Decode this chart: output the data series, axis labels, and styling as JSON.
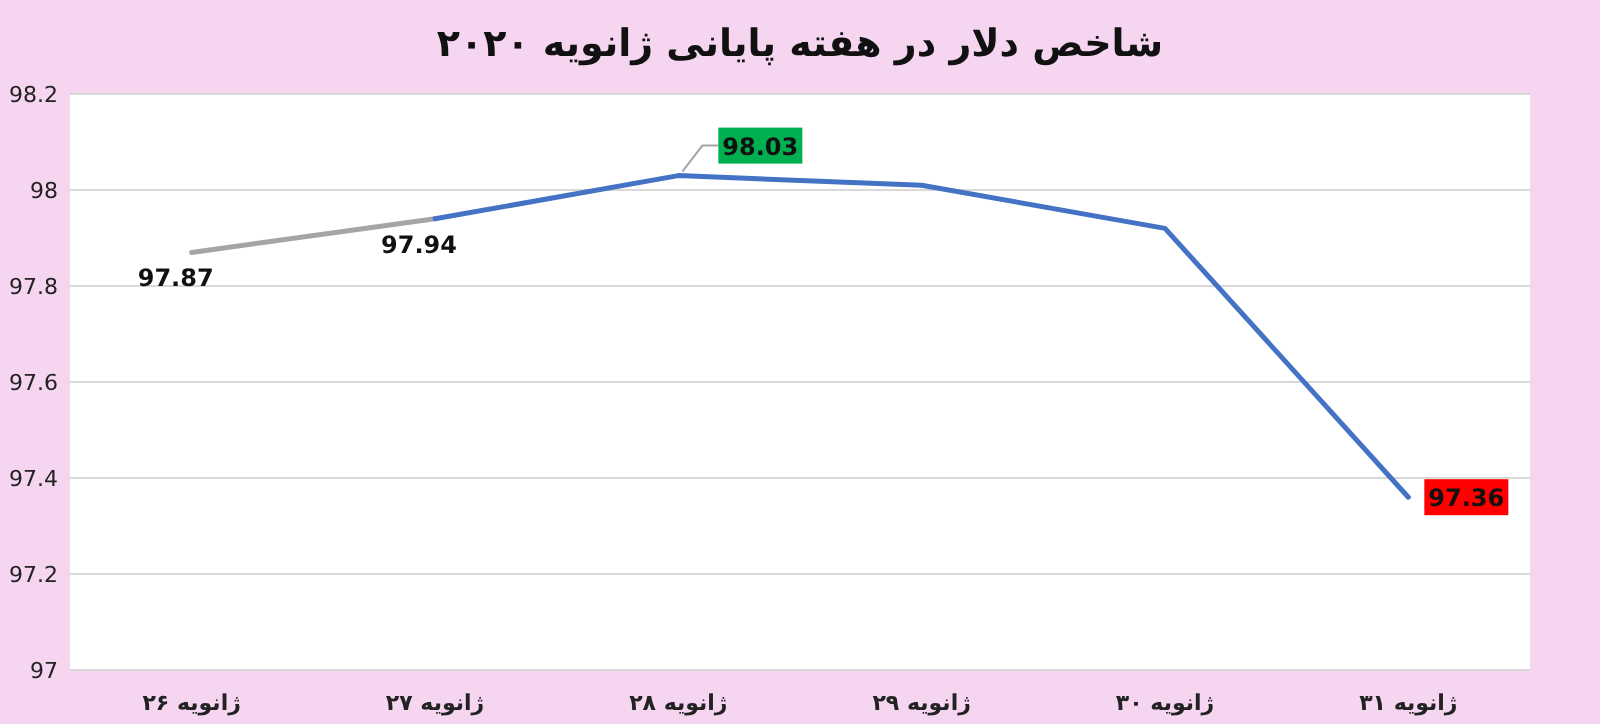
{
  "chart_data": {
    "type": "line",
    "title": "شاخص دلار در هفته پایانی ژانویه ۲۰۲۰",
    "categories": [
      "ژانویه ۲۶",
      "ژانویه ۲۷",
      "ژانویه ۲۸",
      "ژانویه ۲۹",
      "ژانویه ۳۰",
      "ژانویه ۳۱"
    ],
    "series": [
      {
        "color": "#a5a5a5",
        "values": [
          97.87,
          97.94,
          null,
          null,
          null,
          null
        ],
        "value_labels": [
          "97.87",
          null,
          null,
          null,
          null,
          null
        ]
      },
      {
        "color": "#4472c4",
        "values": [
          null,
          97.94,
          98.03,
          98.01,
          97.92,
          97.36
        ],
        "value_labels": [
          null,
          "97.94",
          "98.03",
          null,
          null,
          "97.36"
        ]
      }
    ],
    "ylim": [
      97,
      98.2
    ],
    "yticks": [
      97,
      97.2,
      97.4,
      97.6,
      97.8,
      98,
      98.2
    ],
    "grid": "y",
    "line_style": "solid"
  }
}
